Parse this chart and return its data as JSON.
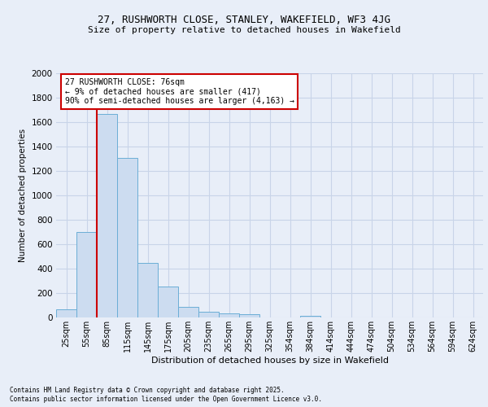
{
  "title1": "27, RUSHWORTH CLOSE, STANLEY, WAKEFIELD, WF3 4JG",
  "title2": "Size of property relative to detached houses in Wakefield",
  "xlabel": "Distribution of detached houses by size in Wakefield",
  "ylabel": "Number of detached properties",
  "categories": [
    "25sqm",
    "55sqm",
    "85sqm",
    "115sqm",
    "145sqm",
    "175sqm",
    "205sqm",
    "235sqm",
    "265sqm",
    "295sqm",
    "325sqm",
    "354sqm",
    "384sqm",
    "414sqm",
    "444sqm",
    "474sqm",
    "504sqm",
    "534sqm",
    "564sqm",
    "594sqm",
    "624sqm"
  ],
  "values": [
    65,
    700,
    1670,
    1310,
    445,
    255,
    85,
    50,
    35,
    25,
    0,
    0,
    15,
    0,
    0,
    0,
    0,
    0,
    0,
    0,
    0
  ],
  "bar_color": "#ccdcf0",
  "bar_edge_color": "#6baed6",
  "vline_x_bar_index": 1.5,
  "annotation_line1": "27 RUSHWORTH CLOSE: 76sqm",
  "annotation_line2": "← 9% of detached houses are smaller (417)",
  "annotation_line3": "90% of semi-detached houses are larger (4,163) →",
  "annotation_box_facecolor": "#ffffff",
  "annotation_box_edgecolor": "#cc0000",
  "vline_color": "#cc0000",
  "ylim_max": 2000,
  "ytick_step": 200,
  "background_color": "#e8eef8",
  "grid_color": "#c8d4e8",
  "footer1": "Contains HM Land Registry data © Crown copyright and database right 2025.",
  "footer2": "Contains public sector information licensed under the Open Government Licence v3.0."
}
